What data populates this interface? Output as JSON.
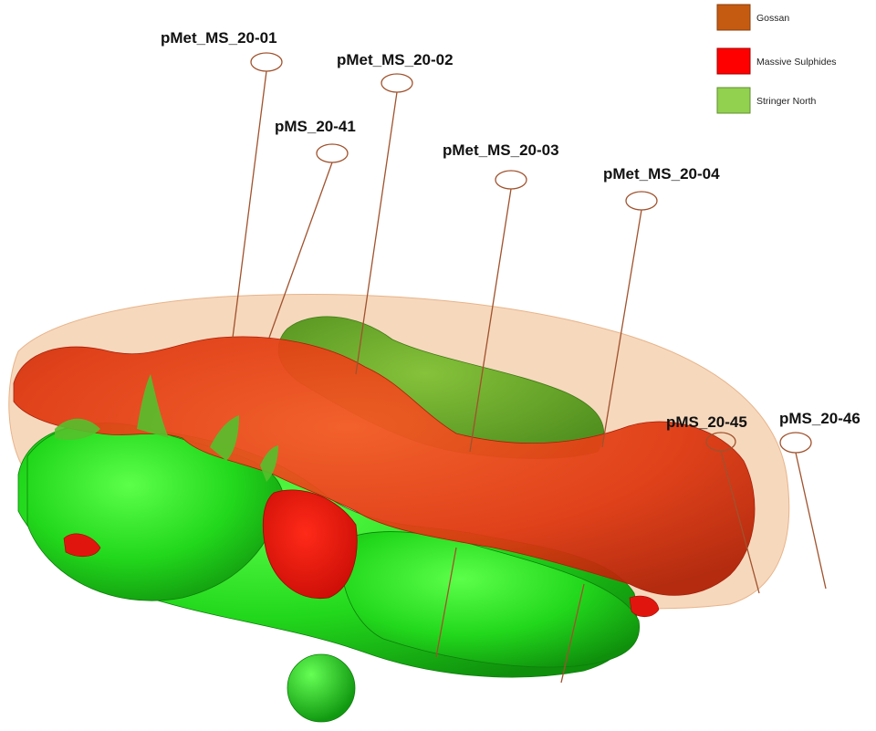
{
  "legend": {
    "items": [
      {
        "label": "Gossan",
        "color": "#c55a11"
      },
      {
        "label": "Massive Sulphides",
        "color": "#ff0000"
      },
      {
        "label": "Stringer North",
        "color": "#92d050"
      }
    ]
  },
  "drill_holes": [
    {
      "label": "pMet_MS_20-01"
    },
    {
      "label": "pMet_MS_20-02"
    },
    {
      "label": "pMS_20-41"
    },
    {
      "label": "pMet_MS_20-03"
    },
    {
      "label": "pMet_MS_20-04"
    },
    {
      "label": "pMS_20-45"
    },
    {
      "label": "pMS_20-46"
    }
  ],
  "colors": {
    "gossan_shell": "#f3c9a4",
    "massive_sulphides": "#e8401a",
    "stringer": "#33e633",
    "drill_trace": "#a0522d"
  }
}
